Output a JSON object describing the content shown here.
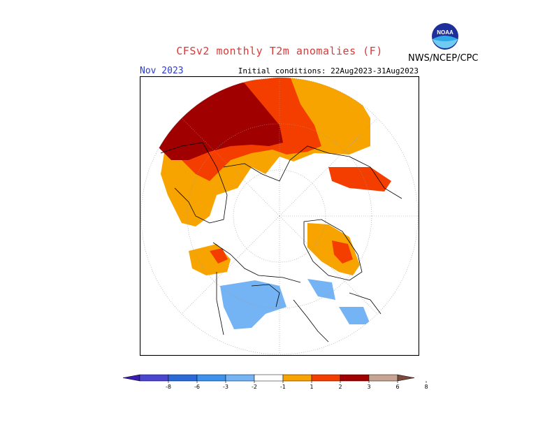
{
  "header": {
    "title": "CFSv2 monthly T2m anomalies (F)",
    "month": "Nov 2023",
    "initial_conditions": "Initial conditions: 22Aug2023-31Aug2023",
    "agency": "NWS/NCEP/CPC",
    "logo_text": "NOAA"
  },
  "colors": {
    "title": "#d83a3a",
    "month": "#2a3bd0",
    "anomaly_1_2": "#f8a400",
    "anomaly_2_3": "#f43e00",
    "anomaly_3_6": "#a00000",
    "anomaly_neg1_neg2": "#74b4f4"
  },
  "legend": {
    "ticks": [
      "-8",
      "-6",
      "-3",
      "-2",
      "-1",
      "1",
      "2",
      "3",
      "6",
      "8"
    ],
    "bins": [
      {
        "color": "#3a1cb0",
        "label": "< -8"
      },
      {
        "color": "#4a46d0",
        "label": "-8 to -6"
      },
      {
        "color": "#2a6ad8",
        "label": "-6 to -3"
      },
      {
        "color": "#3c92ec",
        "label": "-3 to -2"
      },
      {
        "color": "#74b4f4",
        "label": "-2 to -1"
      },
      {
        "color": "#ffffff",
        "label": "-1 to 1"
      },
      {
        "color": "#f8a400",
        "label": "1 to 2"
      },
      {
        "color": "#f43e00",
        "label": "2 to 3"
      },
      {
        "color": "#a00000",
        "label": "3 to 6"
      },
      {
        "color": "#c8a494",
        "label": "6 to 8"
      },
      {
        "color": "#7a4a3a",
        "label": "> 8"
      }
    ]
  }
}
